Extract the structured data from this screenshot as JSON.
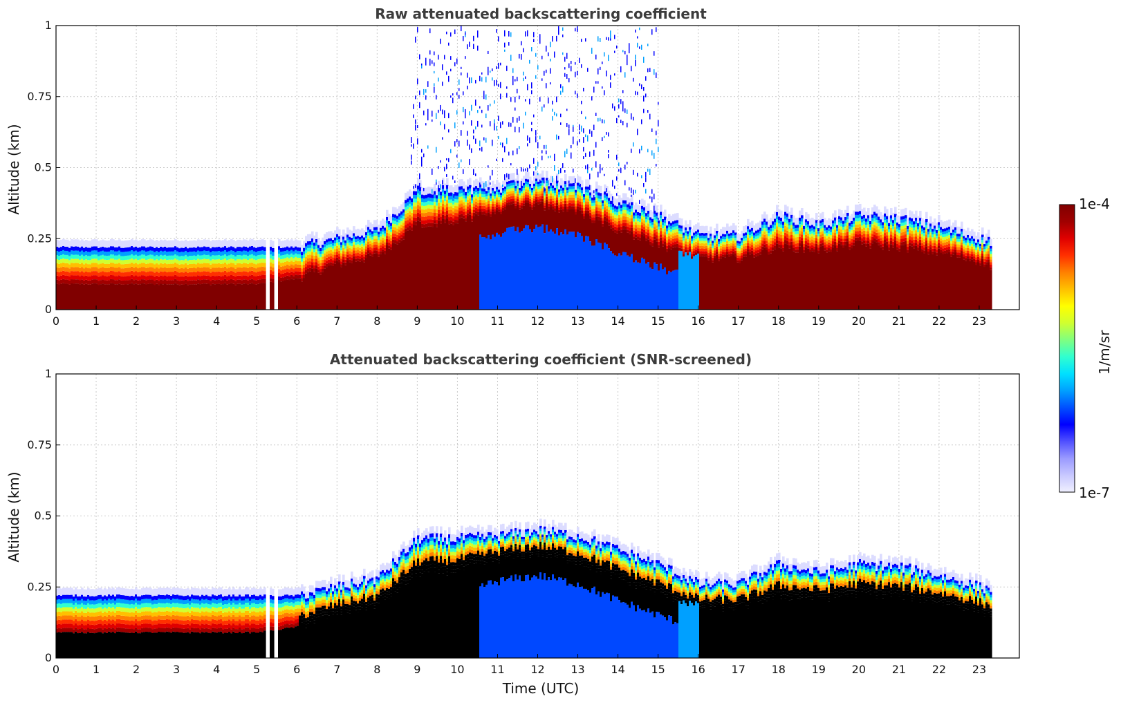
{
  "chart_data": [
    {
      "type": "heatmap",
      "title": "Raw attenuated backscattering coefficient",
      "xlabel": "",
      "ylabel": "Altitude (km)",
      "xlim": [
        0,
        24
      ],
      "ylim": [
        0,
        1
      ],
      "xticks": [
        0,
        1,
        2,
        3,
        4,
        5,
        6,
        7,
        8,
        9,
        10,
        11,
        12,
        13,
        14,
        15,
        16,
        17,
        18,
        19,
        20,
        21,
        22,
        23
      ],
      "yticks": [
        0,
        0.25,
        0.5,
        0.75,
        1
      ],
      "ytick_labels": [
        "0",
        "0.25",
        "0.5",
        "0.75",
        "1"
      ],
      "grid": true,
      "data_end_time": 23.3,
      "gaps": [
        [
          5.2,
          5.3
        ],
        [
          5.4,
          5.5
        ]
      ],
      "layer_top_profile": {
        "x": [
          0,
          1,
          2,
          3,
          4,
          5,
          6,
          7,
          8,
          9,
          10,
          11,
          12,
          13,
          14,
          15,
          16,
          17,
          18,
          19,
          20,
          21,
          22,
          23,
          23.3
        ],
        "y": [
          0.22,
          0.22,
          0.22,
          0.22,
          0.22,
          0.22,
          0.22,
          0.25,
          0.28,
          0.42,
          0.42,
          0.43,
          0.45,
          0.43,
          0.38,
          0.33,
          0.26,
          0.26,
          0.33,
          0.3,
          0.33,
          0.32,
          0.29,
          0.25,
          0.24
        ]
      },
      "dense_layer_top": {
        "x": [
          0,
          1,
          2,
          3,
          4,
          5,
          6,
          7,
          8,
          9,
          10,
          11,
          12,
          13,
          14,
          15,
          16,
          17,
          18,
          19,
          20,
          21,
          22,
          23,
          23.3
        ],
        "y": [
          0.09,
          0.09,
          0.09,
          0.09,
          0.09,
          0.09,
          0.11,
          0.16,
          0.19,
          0.3,
          0.31,
          0.35,
          0.37,
          0.34,
          0.28,
          0.23,
          0.18,
          0.18,
          0.22,
          0.21,
          0.23,
          0.22,
          0.2,
          0.17,
          0.15
        ]
      },
      "noise_region": {
        "x": [
          9,
          15
        ],
        "y": [
          0.45,
          1
        ]
      }
    },
    {
      "type": "heatmap",
      "title": "Attenuated backscattering coefficient (SNR-screened)",
      "xlabel": "Time (UTC)",
      "ylabel": "Altitude (km)",
      "xlim": [
        0,
        24
      ],
      "ylim": [
        0,
        1
      ],
      "xticks": [
        0,
        1,
        2,
        3,
        4,
        5,
        6,
        7,
        8,
        9,
        10,
        11,
        12,
        13,
        14,
        15,
        16,
        17,
        18,
        19,
        20,
        21,
        22,
        23
      ],
      "yticks": [
        0,
        0.25,
        0.5,
        0.75,
        1
      ],
      "ytick_labels": [
        "0",
        "0.25",
        "0.5",
        "0.75",
        "1"
      ],
      "grid": true,
      "data_end_time": 23.3,
      "masked_color": "#000000"
    }
  ],
  "colorbar": {
    "label": "1/m/sr",
    "max_label": "1e-4",
    "min_label": "1e-7",
    "scale": "log",
    "range": [
      1e-07,
      0.0001
    ],
    "colors": [
      "#f0f0ff",
      "#c8c8ff",
      "#9a9aff",
      "#5050ff",
      "#0000ff",
      "#0050ff",
      "#00a0ff",
      "#00e0ff",
      "#30ffd0",
      "#80ff80",
      "#d0ff30",
      "#ffff00",
      "#ffc000",
      "#ff8000",
      "#ff3000",
      "#e00000",
      "#a00000",
      "#800000"
    ]
  }
}
